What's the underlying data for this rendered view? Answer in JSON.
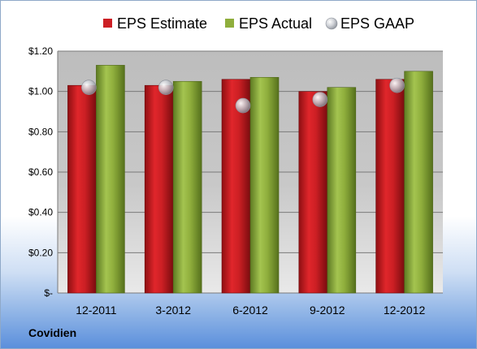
{
  "chart_data": {
    "type": "bar",
    "categories": [
      "12-2011",
      "3-2012",
      "6-2012",
      "9-2012",
      "12-2012"
    ],
    "series": [
      {
        "name": "EPS Estimate",
        "values": [
          1.03,
          1.03,
          1.06,
          1.0,
          1.06
        ],
        "color": "#cc1f24"
      },
      {
        "name": "EPS Actual",
        "values": [
          1.13,
          1.05,
          1.07,
          1.02,
          1.1
        ],
        "color": "#8fae3c"
      },
      {
        "name": "EPS GAAP",
        "values": [
          1.02,
          1.02,
          0.93,
          0.96,
          1.03
        ],
        "marker": "sphere",
        "color": "#b8bcc4"
      }
    ],
    "yticks": [
      {
        "value": 0,
        "label": "$-"
      },
      {
        "value": 0.2,
        "label": "$0.20"
      },
      {
        "value": 0.4,
        "label": "$0.40"
      },
      {
        "value": 0.6,
        "label": "$0.60"
      },
      {
        "value": 0.8,
        "label": "$0.80"
      },
      {
        "value": 1.0,
        "label": "$1.00"
      },
      {
        "value": 1.2,
        "label": "$1.20"
      }
    ],
    "ylim": [
      0,
      1.2
    ],
    "grid": true,
    "legend": "top",
    "footer": "Covidien"
  }
}
